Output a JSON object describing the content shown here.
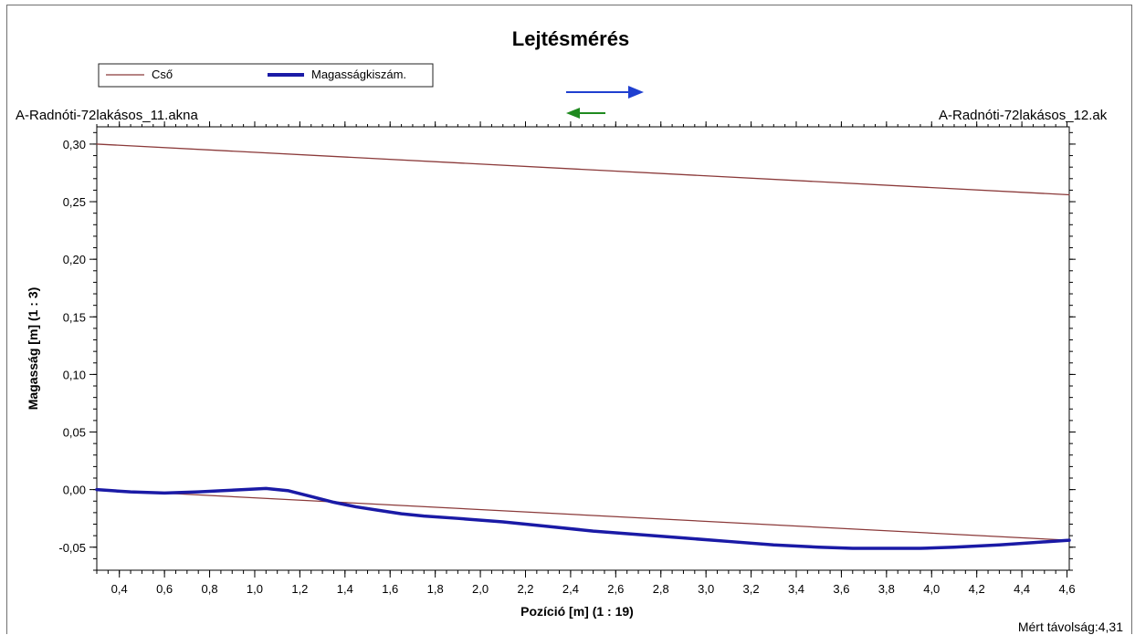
{
  "chart_data": {
    "type": "line",
    "title": "Lejtésmérés",
    "xlabel": "Pozíció [m] (1 : 19)",
    "ylabel": "Magasság [m] (1 : 3)",
    "xlim": [
      0.3,
      4.61
    ],
    "ylim": [
      -0.07,
      0.315
    ],
    "x_ticks": [
      0.4,
      0.6,
      0.8,
      1.0,
      1.2,
      1.4,
      1.6,
      1.8,
      2.0,
      2.2,
      2.4,
      2.6,
      2.8,
      3.0,
      3.2,
      3.4,
      3.6,
      3.8,
      4.0,
      4.2,
      4.4,
      4.6
    ],
    "x_tick_labels": [
      "0,4",
      "0,6",
      "0,8",
      "1,0",
      "1,2",
      "1,4",
      "1,6",
      "1,8",
      "2,0",
      "2,2",
      "2,4",
      "2,6",
      "2,8",
      "3,0",
      "3,2",
      "3,4",
      "3,6",
      "3,8",
      "4,0",
      "4,2",
      "4,4",
      "4,6"
    ],
    "y_ticks": [
      -0.05,
      0.0,
      0.05,
      0.1,
      0.15,
      0.2,
      0.25,
      0.3
    ],
    "y_tick_labels": [
      "-0,05",
      "0,00",
      "0,05",
      "0,10",
      "0,15",
      "0,20",
      "0,25",
      "0,30"
    ],
    "grid": false,
    "legend_position": "top-left",
    "series": [
      {
        "name": "Cső",
        "color": "#8b3a3a",
        "line_style": "thin",
        "segments": [
          {
            "x": [
              0.3,
              4.61
            ],
            "y": [
              0.3,
              0.256
            ]
          },
          {
            "x": [
              0.3,
              4.61
            ],
            "y": [
              0.0,
              -0.044
            ]
          }
        ]
      },
      {
        "name": "Magasságkiszám.",
        "color": "#1a1aa6",
        "line_style": "thick",
        "segments": [
          {
            "x": [
              0.3,
              0.45,
              0.6,
              0.75,
              0.85,
              0.95,
              1.05,
              1.15,
              1.25,
              1.35,
              1.45,
              1.55,
              1.65,
              1.75,
              1.9,
              2.1,
              2.3,
              2.5,
              2.7,
              2.9,
              3.1,
              3.3,
              3.5,
              3.65,
              3.8,
              3.95,
              4.1,
              4.3,
              4.45,
              4.61
            ],
            "y": [
              0.0,
              -0.002,
              -0.003,
              -0.002,
              -0.001,
              0.0,
              0.001,
              -0.001,
              -0.006,
              -0.011,
              -0.015,
              -0.018,
              -0.021,
              -0.023,
              -0.025,
              -0.028,
              -0.032,
              -0.036,
              -0.039,
              -0.042,
              -0.045,
              -0.048,
              -0.05,
              -0.051,
              -0.051,
              -0.051,
              -0.05,
              -0.048,
              -0.046,
              -0.044
            ]
          }
        ]
      }
    ],
    "annotations": {
      "start_label": "A-Radnóti-72lakásos_11.akna",
      "end_label": "A-Radnóti-72lakásos_12.ak",
      "footer_label": "Mért távolság:4,31"
    },
    "direction_arrows": [
      {
        "name": "forward",
        "color": "#1f3fd0"
      },
      {
        "name": "backward",
        "color": "#1f8a1f"
      }
    ]
  }
}
